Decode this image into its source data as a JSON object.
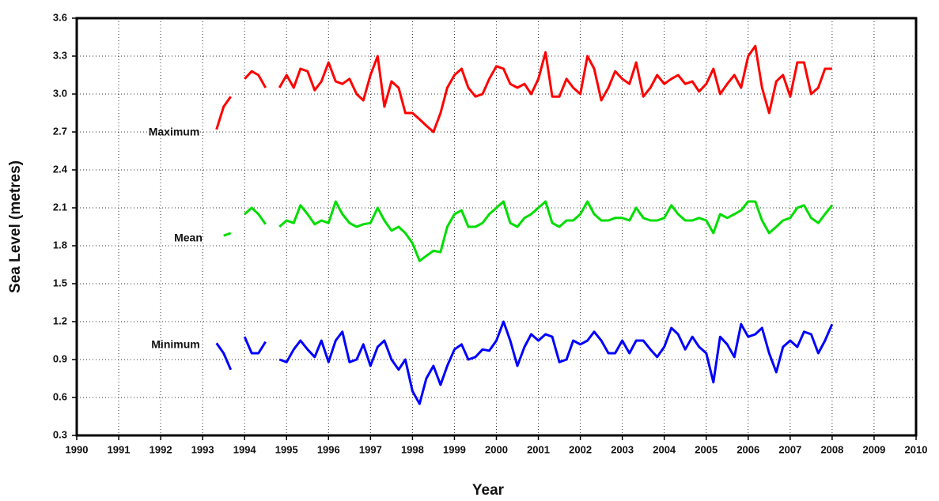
{
  "chart_data": {
    "type": "line",
    "xlabel": "Year",
    "ylabel": "Sea Level (metres)",
    "annotations": [
      "Maximum",
      "Mean",
      "Minimum"
    ],
    "xlim": [
      1990,
      2010
    ],
    "xticks": [
      1990,
      1991,
      1992,
      1993,
      1994,
      1995,
      1996,
      1997,
      1998,
      1999,
      2000,
      2001,
      2002,
      2003,
      2004,
      2005,
      2006,
      2007,
      2008,
      2009,
      2010
    ],
    "ylim": [
      0.3,
      3.6
    ],
    "yticks": [
      0.3,
      0.6,
      0.9,
      1.2,
      1.5,
      1.8,
      2.1,
      2.4,
      2.7,
      {
        "value": 3.0,
        "label": "3.0"
      },
      3.3,
      3.6
    ],
    "grid": true,
    "x": [
      1993.33,
      1993.5,
      1993.67,
      1993.83,
      1994,
      1994.17,
      1994.33,
      1994.5,
      1994.67,
      1994.83,
      1995,
      1995.17,
      1995.33,
      1995.5,
      1995.67,
      1995.83,
      1996,
      1996.17,
      1996.33,
      1996.5,
      1996.67,
      1996.83,
      1997,
      1997.17,
      1997.33,
      1997.5,
      1997.67,
      1997.83,
      1998,
      1998.17,
      1998.33,
      1998.5,
      1998.67,
      1998.83,
      1999,
      1999.17,
      1999.33,
      1999.5,
      1999.67,
      1999.83,
      2000,
      2000.17,
      2000.33,
      2000.5,
      2000.67,
      2000.83,
      2001,
      2001.17,
      2001.33,
      2001.5,
      2001.67,
      2001.83,
      2002,
      2002.17,
      2002.33,
      2002.5,
      2002.67,
      2002.83,
      2003,
      2003.17,
      2003.33,
      2003.5,
      2003.67,
      2003.83,
      2004,
      2004.17,
      2004.33,
      2004.5,
      2004.67,
      2004.83,
      2005,
      2005.17,
      2005.33,
      2005.5,
      2005.67,
      2005.83,
      2006,
      2006.17,
      2006.33,
      2006.5,
      2006.67,
      2006.83,
      2007,
      2007.17,
      2007.33,
      2007.5,
      2007.67,
      2007.83,
      2008
    ],
    "series": [
      {
        "color": "#ff0000",
        "values": [
          2.72,
          2.9,
          2.98,
          null,
          3.12,
          3.18,
          3.15,
          3.05,
          null,
          3.05,
          3.15,
          3.05,
          3.2,
          3.18,
          3.03,
          3.1,
          3.25,
          3.1,
          3.08,
          3.12,
          3.0,
          2.95,
          3.15,
          3.3,
          2.9,
          3.1,
          3.05,
          2.85,
          2.85,
          2.8,
          2.75,
          2.7,
          2.85,
          3.05,
          3.15,
          3.2,
          3.05,
          2.98,
          3.0,
          3.12,
          3.22,
          3.2,
          3.08,
          3.05,
          3.08,
          3.0,
          3.12,
          3.33,
          2.98,
          2.98,
          3.12,
          3.05,
          3.0,
          3.3,
          3.2,
          2.95,
          3.05,
          3.18,
          3.12,
          3.08,
          3.25,
          2.98,
          3.05,
          3.15,
          3.08,
          3.12,
          3.15,
          3.08,
          3.1,
          3.02,
          3.08,
          3.2,
          3.0,
          3.08,
          3.15,
          3.05,
          3.3,
          3.38,
          3.05,
          2.85,
          3.1,
          3.15,
          2.98,
          3.25,
          3.25,
          3.0,
          3.05,
          3.2,
          3.2
        ]
      },
      {
        "color": "#00dd00",
        "values": [
          null,
          1.88,
          1.9,
          null,
          2.05,
          2.1,
          2.05,
          1.97,
          null,
          1.95,
          2.0,
          1.98,
          2.12,
          2.05,
          1.97,
          2.0,
          1.98,
          2.15,
          2.05,
          1.98,
          1.95,
          1.97,
          1.98,
          2.1,
          2.0,
          1.92,
          1.95,
          1.9,
          1.82,
          1.68,
          1.72,
          1.76,
          1.75,
          1.95,
          2.05,
          2.08,
          1.95,
          1.95,
          1.98,
          2.05,
          2.1,
          2.15,
          1.98,
          1.95,
          2.02,
          2.05,
          2.1,
          2.15,
          1.98,
          1.95,
          2.0,
          2.0,
          2.05,
          2.15,
          2.05,
          2.0,
          2.0,
          2.02,
          2.02,
          2.0,
          2.1,
          2.02,
          2.0,
          2.0,
          2.02,
          2.12,
          2.05,
          2.0,
          2.0,
          2.02,
          2.0,
          1.9,
          2.05,
          2.02,
          2.05,
          2.08,
          2.15,
          2.15,
          2.0,
          1.9,
          1.95,
          2.0,
          2.02,
          2.1,
          2.12,
          2.02,
          1.98,
          2.05,
          2.12
        ]
      },
      {
        "color": "#0000ff",
        "values": [
          1.03,
          0.95,
          0.82,
          null,
          1.08,
          0.95,
          0.95,
          1.04,
          null,
          0.9,
          0.88,
          0.98,
          1.05,
          0.98,
          0.92,
          1.05,
          0.88,
          1.05,
          1.12,
          0.88,
          0.9,
          1.02,
          0.85,
          1.0,
          1.05,
          0.9,
          0.82,
          0.9,
          0.65,
          0.55,
          0.75,
          0.85,
          0.7,
          0.85,
          0.98,
          1.02,
          0.9,
          0.92,
          0.98,
          0.97,
          1.05,
          1.2,
          1.05,
          0.85,
          1.0,
          1.1,
          1.05,
          1.1,
          1.08,
          0.88,
          0.9,
          1.05,
          1.02,
          1.05,
          1.12,
          1.05,
          0.95,
          0.95,
          1.05,
          0.95,
          1.05,
          1.05,
          0.98,
          0.92,
          1.0,
          1.15,
          1.1,
          0.98,
          1.08,
          1.0,
          0.95,
          0.72,
          1.08,
          1.02,
          0.92,
          1.18,
          1.08,
          1.1,
          1.15,
          0.95,
          0.8,
          1.0,
          1.05,
          1.0,
          1.12,
          1.1,
          0.95,
          1.05,
          1.18
        ]
      }
    ]
  }
}
